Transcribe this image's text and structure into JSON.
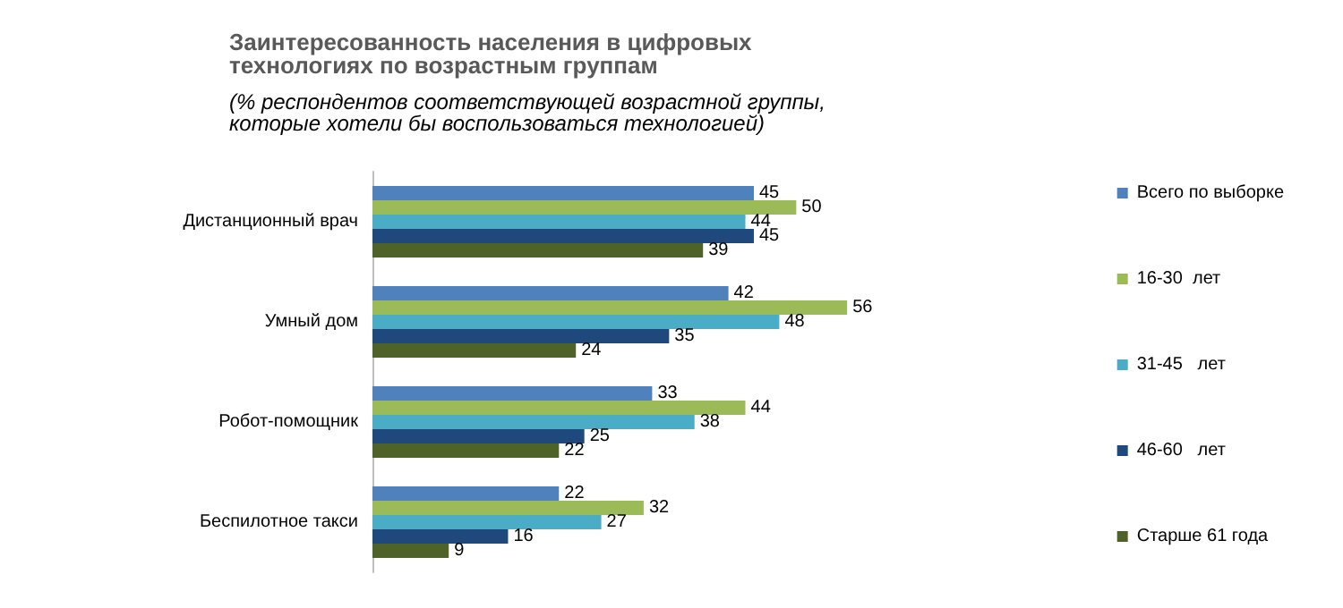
{
  "chart_data": {
    "type": "bar",
    "orientation": "horizontal",
    "title": "Заинтересованность населения в цифровых технологиях по возрастным группам",
    "subtitle": "(% респондентов соответствующей возрастной группы, которые хотели бы воспользоваться технологией)",
    "categories": [
      "Дистанционный врач",
      "Умный дом",
      "Робот-помощник",
      "Беспилотное такси"
    ],
    "series": [
      {
        "name": "Всего по выборке",
        "color": "#4f81bd",
        "values": [
          45,
          42,
          33,
          22
        ]
      },
      {
        "name": "16-30  лет",
        "color": "#9bbb59",
        "values": [
          50,
          56,
          44,
          32
        ]
      },
      {
        "name": "31-45   лет",
        "color": "#4bacc6",
        "values": [
          44,
          48,
          38,
          27
        ]
      },
      {
        "name": "46-60   лет",
        "color": "#1f497d",
        "values": [
          45,
          35,
          25,
          16
        ]
      },
      {
        "name": "Старше 61 года",
        "color": "#4f6228",
        "values": [
          39,
          24,
          22,
          9
        ]
      }
    ],
    "data_labels": true,
    "legend": "right",
    "grid": false,
    "tick_labels": "y"
  }
}
